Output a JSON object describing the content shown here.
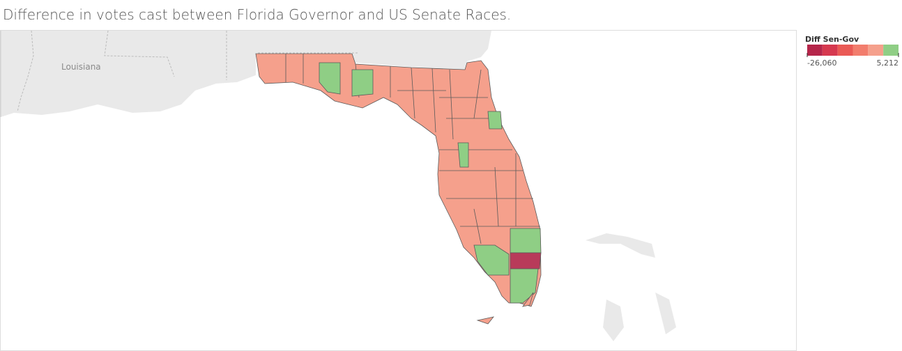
{
  "title": "Difference in votes cast between Florida Governor and US Senate Races.",
  "map": {
    "labels": [
      "Louisiana"
    ]
  },
  "legend": {
    "title": "Diff Sen-Gov",
    "colors": [
      "#b5264a",
      "#d6394f",
      "#ea5a55",
      "#f27d6d",
      "#f5a08c",
      "#8fce85"
    ],
    "range": [
      -26060,
      5212
    ],
    "ticks": [
      {
        "value": -26060,
        "label": "-26,060"
      },
      {
        "value": 5212,
        "label": "5,212"
      }
    ]
  }
}
